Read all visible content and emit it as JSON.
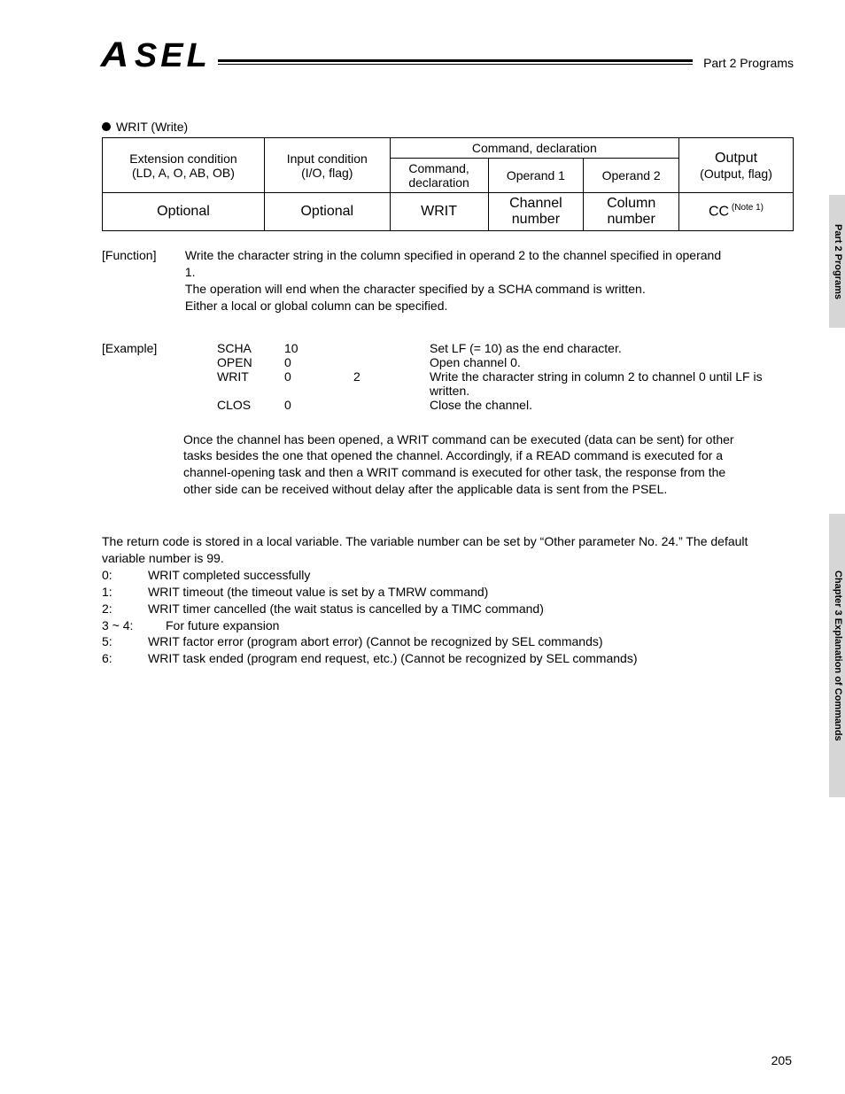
{
  "header": {
    "logo_a": "A",
    "logo_sel": "SEL",
    "right_text": "Part 2  Programs"
  },
  "sidebar": {
    "tab1": "Part 2   Programs",
    "tab2": "Chapter 3   Explanation of Commands"
  },
  "section": {
    "title": "WRIT (Write)"
  },
  "table": {
    "h_ext": "Extension condition",
    "h_ext2": "(LD, A, O, AB, OB)",
    "h_in": "Input condition",
    "h_in2": "(I/O, flag)",
    "h_cmd_decl": "Command, declaration",
    "h_cmd": "Command,",
    "h_cmd2": "declaration",
    "h_op1": "Operand 1",
    "h_op2": "Operand 2",
    "h_out": "Output",
    "h_out2": "(Output, flag)",
    "r_ext": "Optional",
    "r_in": "Optional",
    "r_cmd": "WRIT",
    "r_op1a": "Channel",
    "r_op1b": "number",
    "r_op2a": "Column",
    "r_op2b": "number",
    "r_out": "CC",
    "r_out_note": " (Note 1)"
  },
  "function": {
    "label": "[Function]",
    "line1": "Write the character string in the column specified in operand 2 to the channel specified in operand 1.",
    "line2": "The operation will end when the character specified by a SCHA command is written.",
    "line3": "Either a local or global column can be specified."
  },
  "example": {
    "label": "[Example]",
    "rows": [
      {
        "cmd": "SCHA",
        "op1": "10",
        "op2": "",
        "desc": "Set LF (= 10) as the end character."
      },
      {
        "cmd": "OPEN",
        "op1": "0",
        "op2": "",
        "desc": "Open channel 0."
      },
      {
        "cmd": "WRIT",
        "op1": "0",
        "op2": "2",
        "desc": "Write the character string in column 2 to channel 0 until LF is written."
      },
      {
        "cmd": "CLOS",
        "op1": "0",
        "op2": "",
        "desc": "Close the channel."
      }
    ],
    "para2": "Once the channel has been opened, a WRIT command can be executed (data can be sent) for other tasks besides the one that opened the channel. Accordingly, if a READ command is executed for a channel-opening task and then a WRIT command is executed for other task, the response from the other side can be received without delay after the applicable data is sent from the PSEL."
  },
  "return": {
    "intro": "The return code is stored in a local variable. The variable number can be set by “Other parameter No. 24.” The default variable number is 99.",
    "codes": [
      {
        "c": "0:",
        "t": "WRIT completed successfully"
      },
      {
        "c": "1:",
        "t": "WRIT timeout (the timeout value is set by a TMRW command)"
      },
      {
        "c": "2:",
        "t": "WRIT timer cancelled (the wait status is cancelled by a TIMC command)"
      },
      {
        "c": "3 ~ 4:",
        "t": "For future expansion",
        "wide": true
      },
      {
        "c": "5:",
        "t": "WRIT factor error (program abort error) (Cannot be recognized by SEL commands)"
      },
      {
        "c": "6:",
        "t": "WRIT task ended (program end request, etc.) (Cannot be recognized by SEL commands)"
      }
    ]
  },
  "page_number": "205"
}
